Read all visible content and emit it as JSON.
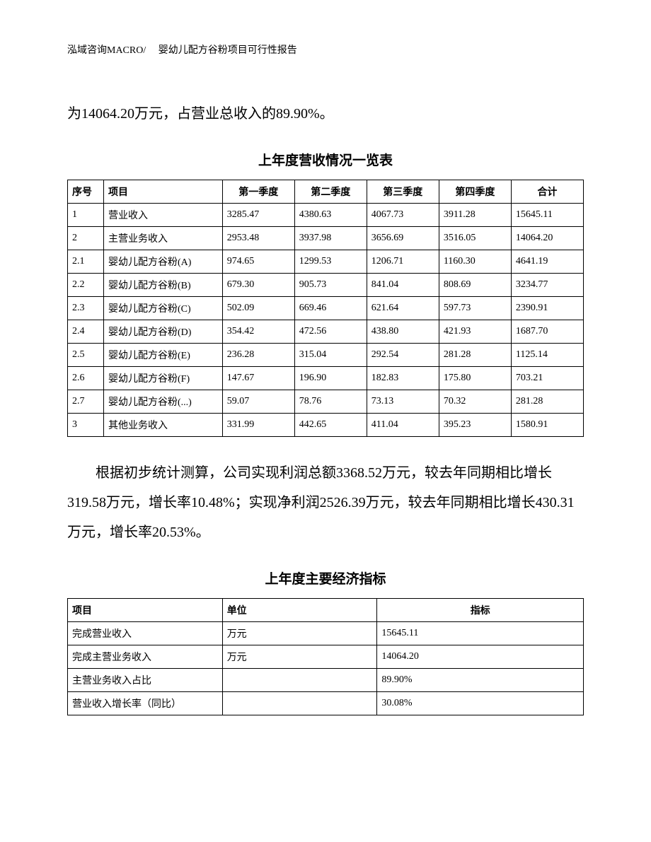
{
  "header": "泓域咨询MACRO/　 婴幼儿配方谷粉项目可行性报告",
  "intro_text": "为14064.20万元，占营业总收入的89.90%。",
  "table1": {
    "title": "上年度营收情况一览表",
    "headers": [
      "序号",
      "项目",
      "第一季度",
      "第二季度",
      "第三季度",
      "第四季度",
      "合计"
    ],
    "rows": [
      [
        "1",
        "营业收入",
        "3285.47",
        "4380.63",
        "4067.73",
        "3911.28",
        "15645.11"
      ],
      [
        "2",
        "主营业务收入",
        "2953.48",
        "3937.98",
        "3656.69",
        "3516.05",
        "14064.20"
      ],
      [
        "2.1",
        "婴幼儿配方谷粉(A)",
        "974.65",
        "1299.53",
        "1206.71",
        "1160.30",
        "4641.19"
      ],
      [
        "2.2",
        "婴幼儿配方谷粉(B)",
        "679.30",
        "905.73",
        "841.04",
        "808.69",
        "3234.77"
      ],
      [
        "2.3",
        "婴幼儿配方谷粉(C)",
        "502.09",
        "669.46",
        "621.64",
        "597.73",
        "2390.91"
      ],
      [
        "2.4",
        "婴幼儿配方谷粉(D)",
        "354.42",
        "472.56",
        "438.80",
        "421.93",
        "1687.70"
      ],
      [
        "2.5",
        "婴幼儿配方谷粉(E)",
        "236.28",
        "315.04",
        "292.54",
        "281.28",
        "1125.14"
      ],
      [
        "2.6",
        "婴幼儿配方谷粉(F)",
        "147.67",
        "196.90",
        "182.83",
        "175.80",
        "703.21"
      ],
      [
        "2.7",
        "婴幼儿配方谷粉(...)",
        "59.07",
        "78.76",
        "73.13",
        "70.32",
        "281.28"
      ],
      [
        "3",
        "其他业务收入",
        "331.99",
        "442.65",
        "411.04",
        "395.23",
        "1580.91"
      ]
    ]
  },
  "mid_text": "根据初步统计测算，公司实现利润总额3368.52万元，较去年同期相比增长319.58万元，增长率10.48%；实现净利润2526.39万元，较去年同期相比增长430.31万元，增长率20.53%。",
  "table2": {
    "title": "上年度主要经济指标",
    "headers": [
      "项目",
      "单位",
      "指标"
    ],
    "rows": [
      [
        "完成营业收入",
        "万元",
        "15645.11"
      ],
      [
        "完成主营业务收入",
        "万元",
        "14064.20"
      ],
      [
        "主营业务收入占比",
        "",
        "89.90%"
      ],
      [
        "营业收入增长率（同比）",
        "",
        "30.08%"
      ]
    ]
  }
}
